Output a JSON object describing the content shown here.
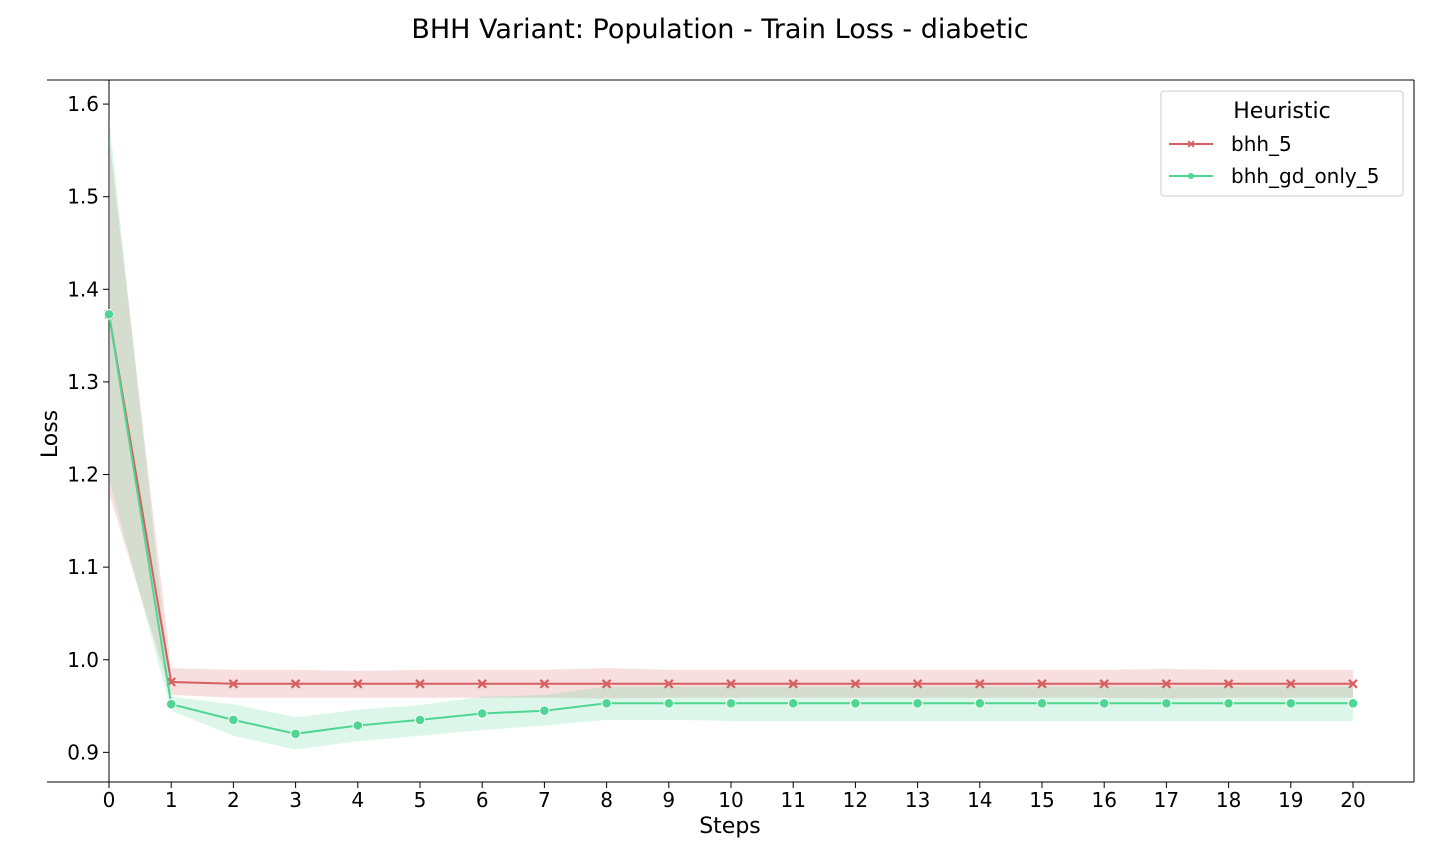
{
  "chart_data": {
    "type": "line",
    "title": "BHH Variant: Population - Train Loss - diabetic",
    "xlabel": "Steps",
    "ylabel": "Loss",
    "x": [
      0,
      1,
      2,
      3,
      4,
      5,
      6,
      7,
      8,
      9,
      10,
      11,
      12,
      13,
      14,
      15,
      16,
      17,
      18,
      19,
      20
    ],
    "xlim": [
      0,
      20
    ],
    "ylim": [
      0.868,
      1.626
    ],
    "yticks": [
      0.9,
      1.0,
      1.1,
      1.2,
      1.3,
      1.4,
      1.5,
      1.6
    ],
    "ytick_labels": [
      "0.9",
      "1.0",
      "1.1",
      "1.2",
      "1.3",
      "1.4",
      "1.5",
      "1.6"
    ],
    "xtick_labels": [
      "0",
      "1",
      "2",
      "3",
      "4",
      "5",
      "6",
      "7",
      "8",
      "9",
      "10",
      "11",
      "12",
      "13",
      "14",
      "15",
      "16",
      "17",
      "18",
      "19",
      "20"
    ],
    "grid": false,
    "legend": {
      "title": "Heuristic",
      "placement": "top-right"
    },
    "series": [
      {
        "name": "bhh_5",
        "color": "#d65f5f",
        "marker": "x",
        "values": [
          1.373,
          0.976,
          0.974,
          0.974,
          0.974,
          0.974,
          0.974,
          0.974,
          0.974,
          0.974,
          0.974,
          0.974,
          0.974,
          0.974,
          0.974,
          0.974,
          0.974,
          0.974,
          0.974,
          0.974,
          0.974
        ],
        "band_lower": [
          1.18,
          0.962,
          0.959,
          0.959,
          0.959,
          0.959,
          0.959,
          0.959,
          0.958,
          0.959,
          0.959,
          0.959,
          0.959,
          0.959,
          0.959,
          0.959,
          0.959,
          0.958,
          0.959,
          0.959,
          0.959
        ],
        "band_upper": [
          1.565,
          0.991,
          0.989,
          0.989,
          0.988,
          0.989,
          0.989,
          0.989,
          0.991,
          0.989,
          0.989,
          0.989,
          0.989,
          0.989,
          0.989,
          0.989,
          0.989,
          0.99,
          0.989,
          0.989,
          0.989
        ]
      },
      {
        "name": "bhh_gd_only_5",
        "color": "#4ed692",
        "marker": "o",
        "values": [
          1.373,
          0.952,
          0.935,
          0.92,
          0.929,
          0.935,
          0.942,
          0.945,
          0.953,
          0.953,
          0.953,
          0.953,
          0.953,
          0.953,
          0.953,
          0.953,
          0.953,
          0.953,
          0.953,
          0.953,
          0.953
        ],
        "band_lower": [
          1.195,
          0.945,
          0.918,
          0.903,
          0.912,
          0.918,
          0.924,
          0.929,
          0.935,
          0.935,
          0.934,
          0.934,
          0.934,
          0.934,
          0.934,
          0.934,
          0.934,
          0.934,
          0.934,
          0.934,
          0.934
        ],
        "band_upper": [
          1.585,
          0.96,
          0.952,
          0.938,
          0.946,
          0.951,
          0.96,
          0.962,
          0.971,
          0.971,
          0.971,
          0.971,
          0.971,
          0.971,
          0.971,
          0.971,
          0.971,
          0.971,
          0.971,
          0.971,
          0.971
        ]
      }
    ]
  }
}
